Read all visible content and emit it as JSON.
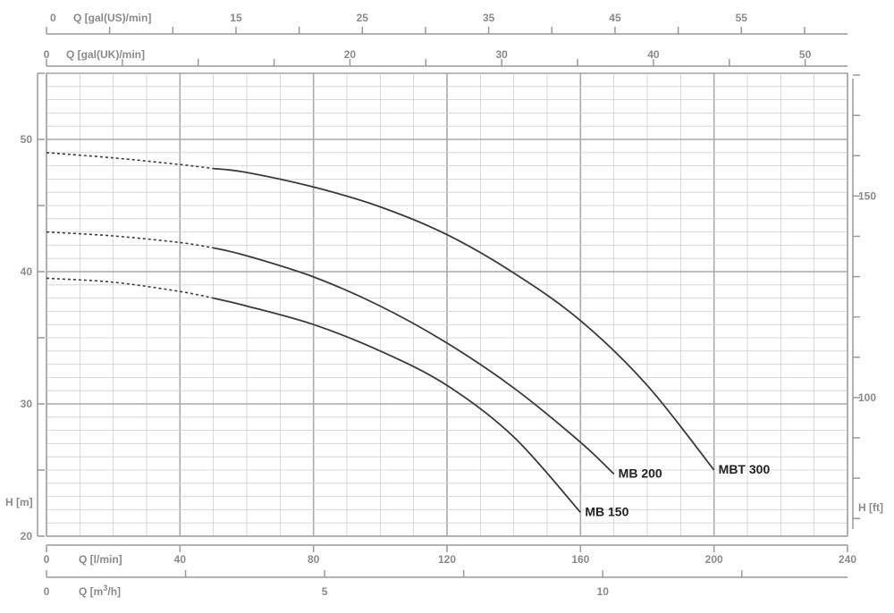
{
  "chart_data": {
    "type": "line",
    "title": "",
    "grid": true,
    "colors": {
      "grid_major": "#a9a9a9",
      "grid_minor": "#cfcfcf",
      "axis": "#9a9a9a",
      "curve": "#3a3a3a",
      "text": "#8a8a8a",
      "label": "#222222"
    },
    "x_axis": {
      "label": "Q [l/min]",
      "range": [
        0,
        240
      ],
      "ticks": [
        0,
        40,
        80,
        120,
        160,
        200,
        240
      ]
    },
    "y_axis": {
      "label": "H [m]",
      "range": [
        20,
        55
      ],
      "ticks": [
        20,
        30,
        40,
        50
      ]
    },
    "secondary_axes": {
      "top_us": {
        "label": "Q [gal(US)/min]",
        "ticks": [
          0,
          15,
          25,
          35,
          45,
          55
        ]
      },
      "top_uk": {
        "label": "Q [gal(UK)/min]",
        "ticks": [
          0,
          20,
          30,
          40,
          50
        ]
      },
      "bottom_m3h": {
        "label_main": "Q [m",
        "label_sup": "3",
        "label_end": "/h]",
        "ticks": [
          0,
          5,
          10
        ]
      },
      "right_ft": {
        "label": "H [ft]",
        "ticks": [
          100,
          150
        ]
      }
    },
    "series": [
      {
        "name": "MBT 300",
        "dashed_points": [
          [
            0,
            49
          ],
          [
            20,
            48.6
          ],
          [
            40,
            48.1
          ],
          [
            50,
            47.8
          ]
        ],
        "points": [
          [
            50,
            47.8
          ],
          [
            60,
            47.5
          ],
          [
            80,
            46.4
          ],
          [
            100,
            44.9
          ],
          [
            120,
            42.8
          ],
          [
            140,
            39.9
          ],
          [
            160,
            36.3
          ],
          [
            180,
            31.4
          ],
          [
            200,
            25
          ]
        ]
      },
      {
        "name": "MB 200",
        "dashed_points": [
          [
            0,
            43
          ],
          [
            20,
            42.7
          ],
          [
            40,
            42.2
          ],
          [
            50,
            41.8
          ]
        ],
        "points": [
          [
            50,
            41.8
          ],
          [
            60,
            41.2
          ],
          [
            80,
            39.6
          ],
          [
            100,
            37.4
          ],
          [
            120,
            34.6
          ],
          [
            140,
            31.2
          ],
          [
            160,
            27.1
          ],
          [
            170,
            24.7
          ]
        ]
      },
      {
        "name": "MB 150",
        "dashed_points": [
          [
            0,
            39.5
          ],
          [
            20,
            39.2
          ],
          [
            40,
            38.5
          ],
          [
            50,
            38
          ]
        ],
        "points": [
          [
            50,
            38
          ],
          [
            60,
            37.4
          ],
          [
            80,
            36
          ],
          [
            100,
            34
          ],
          [
            120,
            31.4
          ],
          [
            140,
            27.5
          ],
          [
            160,
            21.8
          ]
        ]
      }
    ]
  }
}
